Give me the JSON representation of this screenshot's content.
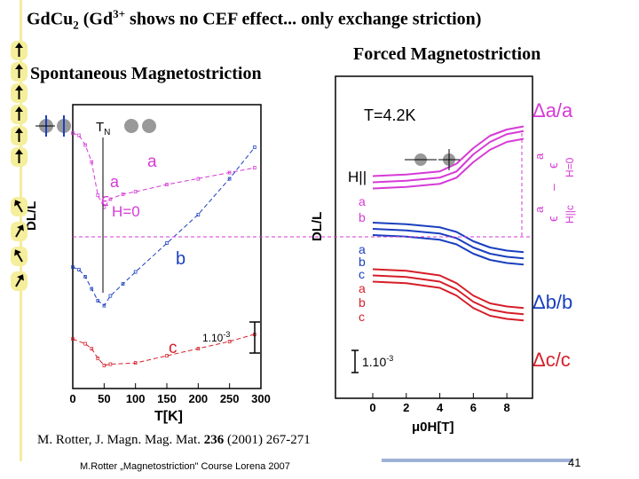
{
  "title": {
    "main": "Gd",
    "formula_tail": "Cu",
    "sub": "2",
    "open": " (Gd",
    "sup": "3+",
    "rest": " shows no CEF effect... only exchange striction)"
  },
  "headings": {
    "spontaneous": "Spontaneous Magnetostriction",
    "forced": "Forced Magnetostriction"
  },
  "arrows": [
    "up",
    "up",
    "up",
    "up",
    "up",
    "up",
    "tilt-left",
    "tilt-right",
    "tilt-left",
    "tilt-right"
  ],
  "colors": {
    "a": "#d63ad6",
    "b": "#1a3fbf",
    "c": "#d61f2a",
    "sidebar": "#f3eca0",
    "accent_bar": "#9fb2d6"
  },
  "chart_data": [
    {
      "type": "scatter",
      "xlabel": "T[K]",
      "ylabel": "DL/L",
      "xlim": [
        0,
        300
      ],
      "xticks": [
        "0",
        "50",
        "100",
        "150",
        "200",
        "250",
        "300"
      ],
      "annotations": {
        "tn": "T",
        "tn_sub": "N",
        "eps_a_label": "a",
        "eps_a_symbol": "ϵ",
        "eps_a_cond": "H=0",
        "scale": "1.10",
        "scale_exp": "-3"
      },
      "series": [
        {
          "name": "a",
          "values": [
            [
              0,
              0.0
            ],
            [
              10,
              0.1
            ],
            [
              20,
              0.5
            ],
            [
              30,
              1.2
            ],
            [
              40,
              2.6
            ],
            [
              50,
              3.1
            ],
            [
              60,
              2.75
            ],
            [
              80,
              2.55
            ],
            [
              100,
              2.45
            ],
            [
              150,
              2.15
            ],
            [
              200,
              1.9
            ],
            [
              250,
              1.65
            ],
            [
              290,
              1.45
            ]
          ]
        },
        {
          "name": "b",
          "values": [
            [
              0,
              5.6
            ],
            [
              10,
              5.7
            ],
            [
              20,
              6.0
            ],
            [
              30,
              6.5
            ],
            [
              40,
              7.0
            ],
            [
              50,
              7.2
            ],
            [
              60,
              6.8
            ],
            [
              80,
              6.3
            ],
            [
              100,
              5.8
            ],
            [
              150,
              4.6
            ],
            [
              200,
              3.4
            ],
            [
              250,
              1.9
            ],
            [
              290,
              0.6
            ]
          ]
        },
        {
          "name": "c",
          "values": [
            [
              0,
              8.6
            ],
            [
              20,
              8.8
            ],
            [
              30,
              9.0
            ],
            [
              40,
              9.4
            ],
            [
              50,
              9.7
            ],
            [
              60,
              9.65
            ],
            [
              100,
              9.6
            ],
            [
              150,
              9.3
            ],
            [
              200,
              9.0
            ],
            [
              250,
              8.7
            ],
            [
              290,
              8.4
            ]
          ]
        }
      ]
    },
    {
      "type": "line",
      "xlabel": "μ0H[T]",
      "ylabel": "DL/L",
      "xlim": [
        0,
        9
      ],
      "xticks": [
        "0",
        "2",
        "4",
        "6",
        "8"
      ],
      "annotations": {
        "temperature": "T=4.2K",
        "field": "H||",
        "delta_a": "Δa/a",
        "delta_b": "Δb/b",
        "delta_c": "Δc/c",
        "eps_a": "a",
        "eps_eps": "ϵ",
        "eps_minus": "–",
        "eps_cond": "H||c",
        "eps_h0": "H=0",
        "eps_a2": "a",
        "eps_eps2": "ϵ",
        "scale": "1.10",
        "scale_exp": "-3"
      },
      "series": [
        {
          "name": "a",
          "group": "a",
          "values": [
            [
              0,
              -2.2
            ],
            [
              2,
              -2.1
            ],
            [
              4,
              -1.9
            ],
            [
              5,
              -1.4
            ],
            [
              6,
              -0.4
            ],
            [
              7,
              0.4
            ],
            [
              8,
              0.8
            ],
            [
              9,
              1.0
            ]
          ]
        },
        {
          "name": "a",
          "group": "a",
          "values": [
            [
              0,
              -2.6
            ],
            [
              2,
              -2.5
            ],
            [
              4,
              -2.3
            ],
            [
              5,
              -1.9
            ],
            [
              6,
              -0.8
            ],
            [
              7,
              0.0
            ],
            [
              8,
              0.5
            ],
            [
              9,
              0.7
            ]
          ]
        },
        {
          "name": "b",
          "group": "a",
          "values": [
            [
              0,
              -3.0
            ],
            [
              2,
              -2.9
            ],
            [
              4,
              -2.7
            ],
            [
              5,
              -2.3
            ],
            [
              6,
              -1.3
            ],
            [
              7,
              -0.5
            ],
            [
              8,
              0.0
            ],
            [
              9,
              0.2
            ]
          ]
        },
        {
          "name": "b",
          "group": "b",
          "values": [
            [
              0,
              -5.2
            ],
            [
              2,
              -5.3
            ],
            [
              4,
              -5.5
            ],
            [
              5,
              -5.8
            ],
            [
              6,
              -6.4
            ],
            [
              7,
              -6.8
            ],
            [
              8,
              -7.0
            ],
            [
              9,
              -7.1
            ]
          ]
        },
        {
          "name": "b",
          "group": "b",
          "values": [
            [
              0,
              -5.6
            ],
            [
              2,
              -5.7
            ],
            [
              4,
              -5.9
            ],
            [
              5,
              -6.2
            ],
            [
              6,
              -6.8
            ],
            [
              7,
              -7.2
            ],
            [
              8,
              -7.4
            ],
            [
              9,
              -7.5
            ]
          ]
        },
        {
          "name": "c",
          "group": "b",
          "values": [
            [
              0,
              -6.0
            ],
            [
              2,
              -6.1
            ],
            [
              4,
              -6.3
            ],
            [
              5,
              -6.6
            ],
            [
              6,
              -7.2
            ],
            [
              7,
              -7.6
            ],
            [
              8,
              -7.8
            ],
            [
              9,
              -7.9
            ]
          ]
        },
        {
          "name": "a",
          "group": "c",
          "values": [
            [
              0,
              -8.2
            ],
            [
              2,
              -8.3
            ],
            [
              4,
              -8.6
            ],
            [
              5,
              -9.1
            ],
            [
              6,
              -9.9
            ],
            [
              7,
              -10.4
            ],
            [
              8,
              -10.6
            ],
            [
              9,
              -10.7
            ]
          ]
        },
        {
          "name": "b",
          "group": "c",
          "values": [
            [
              0,
              -8.6
            ],
            [
              2,
              -8.7
            ],
            [
              4,
              -9.0
            ],
            [
              5,
              -9.5
            ],
            [
              6,
              -10.3
            ],
            [
              7,
              -10.8
            ],
            [
              8,
              -11.0
            ],
            [
              9,
              -11.1
            ]
          ]
        },
        {
          "name": "c",
          "group": "c",
          "values": [
            [
              0,
              -9.0
            ],
            [
              2,
              -9.1
            ],
            [
              4,
              -9.4
            ],
            [
              5,
              -9.9
            ],
            [
              6,
              -10.7
            ],
            [
              7,
              -11.2
            ],
            [
              8,
              -11.4
            ],
            [
              9,
              -11.5
            ]
          ]
        }
      ]
    }
  ],
  "footer": {
    "citation_pre": "M. Rotter, J. Magn. Mag. Mat. ",
    "citation_vol": "236",
    "citation_post": " (2001) 267-271",
    "course": "M.Rotter „Magnetostriction\" Course Lorena 2007",
    "page_number": "41"
  }
}
